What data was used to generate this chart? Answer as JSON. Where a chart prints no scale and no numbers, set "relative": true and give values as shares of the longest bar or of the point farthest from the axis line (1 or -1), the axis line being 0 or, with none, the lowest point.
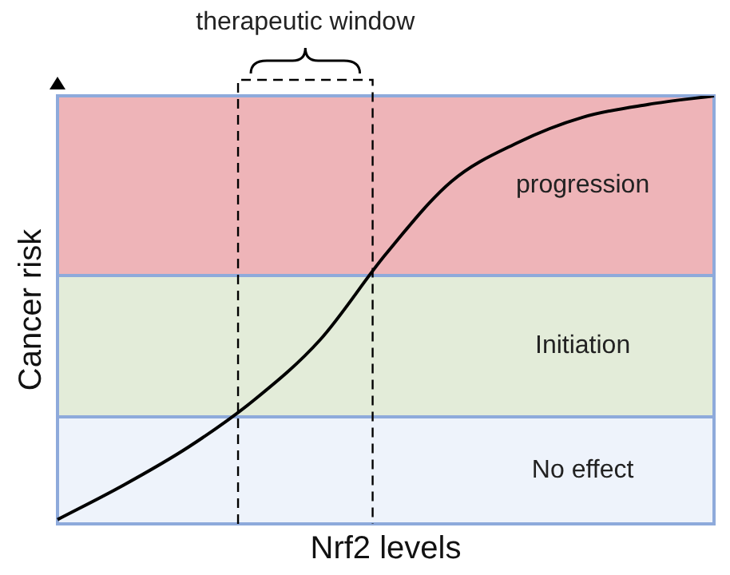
{
  "chart_data": {
    "type": "line",
    "relative": true,
    "xlabel": "Nrf2 levels",
    "ylabel": "Cancer risk",
    "categories": [
      null,
      null,
      null,
      null,
      null,
      null,
      null,
      null,
      null,
      null,
      null
    ],
    "series": [
      {
        "color": "#000000",
        "values": [
          0.01,
          0.09,
          0.18,
          0.29,
          0.43,
          0.63,
          0.8,
          0.89,
          0.95,
          0.98,
          1.0
        ]
      }
    ],
    "bands": [
      {
        "axis": "y",
        "from": 0,
        "to": 0.25,
        "label": "No effect",
        "color": "#eef3fb"
      },
      {
        "axis": "y",
        "from": 0.25,
        "to": 0.58,
        "label": "Initiation",
        "color": "#e3ecd9"
      },
      {
        "axis": "y",
        "from": 0.58,
        "to": 1.0,
        "label": "progression",
        "color": "#eeb4b8"
      }
    ],
    "annotations": [
      "therapeutic window"
    ],
    "marker": "none",
    "line_style": "solid"
  }
}
